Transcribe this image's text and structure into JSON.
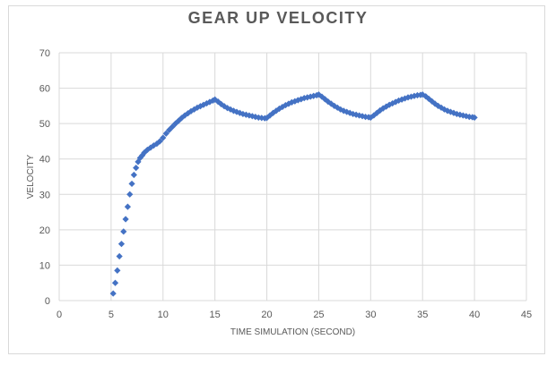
{
  "chart_data": {
    "type": "scatter",
    "title": "GEAR UP VELOCITY",
    "xlabel": "TIME SIMULATION (SECOND)",
    "ylabel": "VELOCITY",
    "xlim": [
      0,
      45
    ],
    "ylim": [
      0,
      70
    ],
    "xticks": [
      0,
      5,
      10,
      15,
      20,
      25,
      30,
      35,
      40,
      45
    ],
    "yticks": [
      0,
      10,
      20,
      30,
      40,
      50,
      60,
      70
    ],
    "grid": true,
    "legend": "none",
    "marker": "diamond",
    "series_color": "#4472c4",
    "series": [
      {
        "x": [
          5.2,
          5.4,
          5.6,
          5.8,
          6.0,
          6.2,
          6.4,
          6.6,
          6.8,
          7.0,
          7.2,
          7.4,
          7.6,
          7.8,
          8.0,
          8.2,
          8.5,
          8.8,
          9.1,
          9.4,
          9.7,
          10.0,
          10.3,
          10.6,
          10.9,
          11.2,
          11.5,
          11.8,
          12.1,
          12.4,
          12.7,
          13.0,
          13.3,
          13.6,
          13.9,
          14.2,
          14.5,
          14.8,
          15.0,
          15.3,
          15.6,
          15.9,
          16.2,
          16.5,
          16.8,
          17.1,
          17.4,
          17.7,
          18.0,
          18.3,
          18.6,
          18.9,
          19.2,
          19.5,
          19.8,
          20.0,
          20.3,
          20.6,
          20.9,
          21.2,
          21.5,
          21.8,
          22.1,
          22.4,
          22.7,
          23.0,
          23.3,
          23.6,
          23.9,
          24.2,
          24.5,
          24.8,
          25.0,
          25.3,
          25.6,
          25.9,
          26.2,
          26.5,
          26.8,
          27.1,
          27.4,
          27.7,
          28.0,
          28.3,
          28.6,
          28.9,
          29.2,
          29.5,
          29.8,
          30.0,
          30.3,
          30.6,
          30.9,
          31.2,
          31.5,
          31.8,
          32.1,
          32.4,
          32.7,
          33.0,
          33.3,
          33.6,
          33.9,
          34.2,
          34.5,
          34.8,
          35.0,
          35.3,
          35.6,
          35.9,
          36.2,
          36.5,
          36.8,
          37.1,
          37.4,
          37.7,
          38.0,
          38.3,
          38.6,
          38.9,
          39.2,
          39.5,
          39.8,
          40.0
        ],
        "y": [
          2,
          5,
          8.5,
          12.5,
          16,
          19.5,
          23,
          26.5,
          30,
          33,
          35.5,
          37.5,
          39.2,
          40.3,
          41,
          41.8,
          42.6,
          43.2,
          43.8,
          44.3,
          45,
          46,
          47.2,
          48.2,
          49.1,
          50,
          50.8,
          51.6,
          52.3,
          52.9,
          53.5,
          54,
          54.5,
          54.9,
          55.3,
          55.7,
          56.1,
          56.5,
          56.8,
          56.2,
          55.5,
          54.9,
          54.4,
          54,
          53.6,
          53.3,
          53,
          52.7,
          52.5,
          52.3,
          52.1,
          51.9,
          51.7,
          51.6,
          51.5,
          51.6,
          52.3,
          53,
          53.6,
          54.2,
          54.7,
          55.2,
          55.6,
          56,
          56.3,
          56.6,
          56.9,
          57.2,
          57.4,
          57.6,
          57.8,
          58,
          58.2,
          57.6,
          56.9,
          56.2,
          55.6,
          55,
          54.5,
          54,
          53.6,
          53.3,
          53,
          52.7,
          52.5,
          52.3,
          52.1,
          51.9,
          51.8,
          51.7,
          52.3,
          53,
          53.7,
          54.3,
          54.8,
          55.3,
          55.7,
          56.1,
          56.5,
          56.8,
          57.1,
          57.4,
          57.6,
          57.8,
          58,
          58.1,
          58.2,
          57.7,
          57,
          56.3,
          55.6,
          55,
          54.5,
          54,
          53.6,
          53.3,
          53,
          52.7,
          52.5,
          52.3,
          52.1,
          51.9,
          51.8,
          51.7
        ]
      }
    ]
  }
}
